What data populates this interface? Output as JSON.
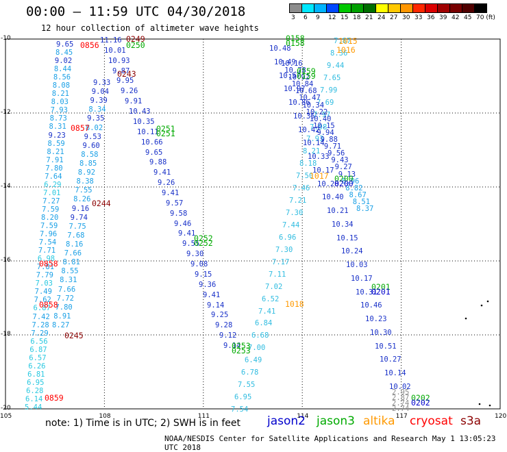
{
  "header": {
    "title": "00:00 – 11:59 UTC 04/30/2018",
    "subtitle": "12 hour collection of altimeter wave heights"
  },
  "colorbar": {
    "labels": [
      "3",
      "6",
      "9",
      "12",
      "15",
      "18",
      "21",
      "24",
      "27",
      "30",
      "33",
      "36",
      "39",
      "42",
      "45",
      "70 (ft)"
    ],
    "colors": [
      "#8c8c8c",
      "#00e8ff",
      "#00b4ff",
      "#0048ff",
      "#00c800",
      "#00a000",
      "#006e00",
      "#ffff00",
      "#ffc800",
      "#ff9600",
      "#ff2800",
      "#dc0000",
      "#a00000",
      "#780000",
      "#500000",
      "#000000"
    ]
  },
  "axes": {
    "x_labels": [
      "105",
      "108",
      "111",
      "114",
      "117",
      "120"
    ],
    "y_labels": [
      "-10",
      "-12",
      "-14",
      "-16",
      "-18",
      "-20"
    ]
  },
  "satellites": [
    {
      "name": "jason2",
      "color": "#0000cc"
    },
    {
      "name": "jason3",
      "color": "#00aa00"
    },
    {
      "name": "altika",
      "color": "#ff9900"
    },
    {
      "name": "cryosat",
      "color": "#ff0000"
    },
    {
      "name": "s3a",
      "color": "#8b0000"
    }
  ],
  "note": "note:  1) Time is in UTC; 2) SWH is in feet",
  "credit": "NOAA/NESDIS Center for Satellite Applications and Research    May  1 13:05:23 UTC 2018",
  "track_values": {
    "left_column": [
      "9.65",
      "8.45",
      "9.02",
      "8.44",
      "8.56",
      "8.08",
      "8.21",
      "8.03",
      "7.93",
      "8.73",
      "8.31",
      "9.23",
      "8.59",
      "8.21",
      "7.91",
      "7.80",
      "7.64",
      "6.29",
      "7.01",
      "7.27",
      "7.59",
      "8.20",
      "7.59",
      "7.96",
      "7.54",
      "7.71",
      "6.98",
      "7.81",
      "7.79",
      "7.03",
      "7.49",
      "7.62",
      "6.87",
      "7.42",
      "7.28",
      "7.29",
      "6.56",
      "6.87",
      "6.57",
      "6.26",
      "6.81",
      "6.95",
      "6.28",
      "6.14",
      "5.44"
    ],
    "mid_column": [
      "9.33",
      "9.04",
      "9.39",
      "8.34",
      "9.35",
      "8.02",
      "9.53",
      "9.60",
      "8.58",
      "8.85",
      "8.92",
      "8.38",
      "7.55",
      "8.26",
      "9.16",
      "9.74",
      "7.75",
      "7.68",
      "8.16",
      "7.66",
      "8.81",
      "8.55",
      "8.31",
      "7.66",
      "7.72",
      "7.80",
      "8.91",
      "8.27"
    ],
    "jason3_right": [
      "7.87",
      "8.36",
      "9.44",
      "7.65",
      "7.99",
      "7.69",
      "7.97",
      "7.98",
      "7.93",
      "8.21",
      "8.18",
      "7.50",
      "7.46",
      "7.21",
      "7.30",
      "7.44",
      "6.96",
      "7.30",
      "7.17",
      "7.11",
      "7.02",
      "6.52",
      "7.41",
      "6.84",
      "6.68",
      "7.00",
      "6.49",
      "6.78",
      "7.55",
      "6.95",
      "7.54"
    ],
    "track_a": [
      "11.16",
      "10.01",
      "10.93",
      "9.87",
      "9.95",
      "9.26",
      "9.91",
      "10.43",
      "10.35",
      "10.11",
      "10.66",
      "9.65",
      "9.88",
      "9.41",
      "9.26",
      "9.41",
      "9.57",
      "9.58",
      "9.46",
      "9.41",
      "9.55",
      "9.30",
      "9.08",
      "9.15",
      "9.36",
      "9.41",
      "9.14",
      "9.25",
      "9.28",
      "9.12",
      "9.14"
    ],
    "track_b": [
      "10.48",
      "10.49",
      "10.57",
      "10.97",
      "10.86",
      "10.35",
      "10.42",
      "10.14",
      "10.33",
      "10.17",
      "10.28",
      "10.40",
      "10.21",
      "10.34",
      "10.15",
      "10.24",
      "10.03",
      "10.17",
      "10.31",
      "10.46",
      "10.23",
      "10.30",
      "10.51",
      "10.27",
      "10.14",
      "10.02"
    ],
    "track_c": [
      "10.16",
      "10.78",
      "10.92",
      "10.84",
      "10.68",
      "10.47",
      "10.34",
      "10.22",
      "10.40",
      "10.15",
      "9.94",
      "9.88",
      "9.71",
      "9.56",
      "9.43",
      "9.27",
      "9.13",
      "8.96",
      "8.82",
      "8.67",
      "8.51",
      "8.37"
    ],
    "grey_end": [
      "2.95",
      "2.87",
      "2.74",
      "2.74"
    ]
  },
  "time_labels": [
    {
      "text": "0249",
      "sat": "s3a"
    },
    {
      "text": "0250",
      "sat": "jason3"
    },
    {
      "text": "0856",
      "sat": "cryosat"
    },
    {
      "text": "0243",
      "sat": "s3a"
    },
    {
      "text": "0857",
      "sat": "cryosat"
    },
    {
      "text": "0251",
      "sat": "jason3"
    },
    {
      "text": "0251",
      "sat": "jason3"
    },
    {
      "text": "0244",
      "sat": "s3a"
    },
    {
      "text": "0252",
      "sat": "jason3"
    },
    {
      "text": "0252",
      "sat": "jason3"
    },
    {
      "text": "0858",
      "sat": "cryosat"
    },
    {
      "text": "0858",
      "sat": "cryosat"
    },
    {
      "text": "0245",
      "sat": "s3a"
    },
    {
      "text": "0253",
      "sat": "jason3"
    },
    {
      "text": "0253",
      "sat": "jason3"
    },
    {
      "text": "0859",
      "sat": "cryosat"
    },
    {
      "text": "0158",
      "sat": "jason3"
    },
    {
      "text": "0158",
      "sat": "jason3"
    },
    {
      "text": "1015",
      "sat": "altika"
    },
    {
      "text": "1016",
      "sat": "altika"
    },
    {
      "text": "0159",
      "sat": "jason3"
    },
    {
      "text": "0159",
      "sat": "jason3"
    },
    {
      "text": "1017",
      "sat": "altika"
    },
    {
      "text": "0200",
      "sat": "jason3"
    },
    {
      "text": "0200",
      "sat": "jason2"
    },
    {
      "text": "0201",
      "sat": "jason3"
    },
    {
      "text": "0201",
      "sat": "jason2"
    },
    {
      "text": "1018",
      "sat": "altika"
    },
    {
      "text": "0202",
      "sat": "jason3"
    },
    {
      "text": "0202",
      "sat": "jason2"
    }
  ]
}
